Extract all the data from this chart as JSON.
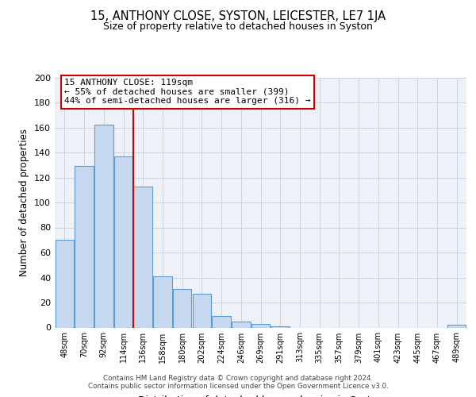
{
  "title": "15, ANTHONY CLOSE, SYSTON, LEICESTER, LE7 1JA",
  "subtitle": "Size of property relative to detached houses in Syston",
  "xlabel": "Distribution of detached houses by size in Syston",
  "ylabel": "Number of detached properties",
  "bar_labels": [
    "48sqm",
    "70sqm",
    "92sqm",
    "114sqm",
    "136sqm",
    "158sqm",
    "180sqm",
    "202sqm",
    "224sqm",
    "246sqm",
    "269sqm",
    "291sqm",
    "313sqm",
    "335sqm",
    "357sqm",
    "379sqm",
    "401sqm",
    "423sqm",
    "445sqm",
    "467sqm",
    "489sqm"
  ],
  "bar_values": [
    70,
    129,
    162,
    137,
    113,
    41,
    31,
    27,
    9,
    5,
    3,
    1,
    0,
    0,
    0,
    0,
    0,
    0,
    0,
    0,
    2
  ],
  "bar_color": "#c6d9f0",
  "bar_edge_color": "#5b9bd5",
  "vline_x": 3.5,
  "vline_color": "#cc0000",
  "annotation_line1": "15 ANTHONY CLOSE: 119sqm",
  "annotation_line2": "← 55% of detached houses are smaller (399)",
  "annotation_line3": "44% of semi-detached houses are larger (316) →",
  "ylim": [
    0,
    200
  ],
  "yticks": [
    0,
    20,
    40,
    60,
    80,
    100,
    120,
    140,
    160,
    180,
    200
  ],
  "grid_color": "#c8d4e0",
  "footer_line1": "Contains HM Land Registry data © Crown copyright and database right 2024.",
  "footer_line2": "Contains public sector information licensed under the Open Government Licence v3.0.",
  "bg_color": "#ffffff",
  "plot_bg_color": "#eef2f8"
}
